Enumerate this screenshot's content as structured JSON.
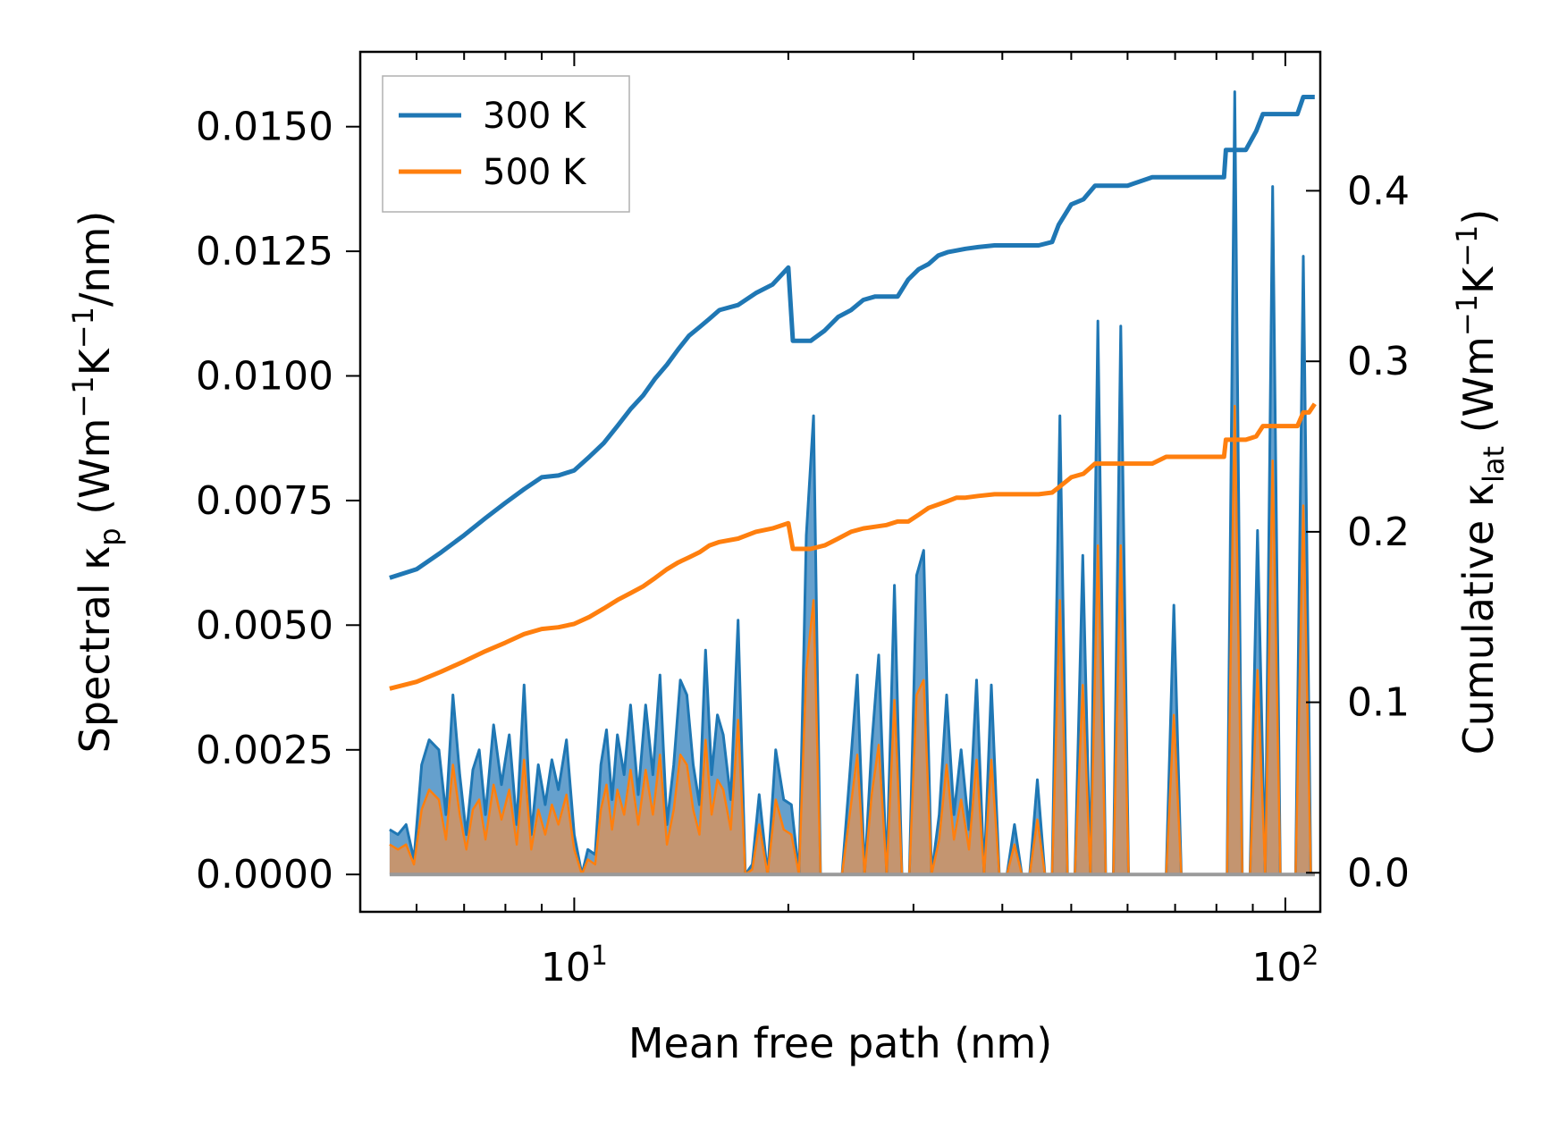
{
  "chart_data": {
    "type": "line",
    "xscale": "log",
    "xlim": [
      5,
      112
    ],
    "xticks": [
      10,
      100
    ],
    "xtick_labels": [
      {
        "base": "10",
        "exp": "1"
      },
      {
        "base": "10",
        "exp": "2"
      }
    ],
    "xlabel": "Mean free path (nm)",
    "ylabel_left": {
      "prefix": "Spectral κ",
      "sub": "p",
      "mid": " (Wm",
      "sup1": "−1",
      "k": "K",
      "sup2": "−1",
      "suffix": "/nm)"
    },
    "ylabel_right": {
      "prefix": "Cumulative κ",
      "sub": "lat",
      "mid": " (Wm",
      "sup1": "−1",
      "k": "K",
      "sup2": "−1",
      "suffix": ")"
    },
    "ylim_left": [
      -0.00075,
      0.0165
    ],
    "ylim_right": [
      -0.0229,
      0.4815
    ],
    "yticks_left": [
      0.0,
      0.0025,
      0.005,
      0.0075,
      0.01,
      0.0125,
      0.015
    ],
    "ytick_labels_left": [
      "0.0000",
      "0.0025",
      "0.0050",
      "0.0075",
      "0.0100",
      "0.0125",
      "0.0150"
    ],
    "yticks_right": [
      0.0,
      0.1,
      0.2,
      0.3,
      0.4
    ],
    "ytick_labels_right": [
      "0.0",
      "0.1",
      "0.2",
      "0.3",
      "0.4"
    ],
    "legend": {
      "position": "upper-left",
      "entries": [
        "300 K",
        "500 K"
      ]
    },
    "colors": {
      "300 K": "#1f77b4",
      "500 K": "#ff7f0e",
      "fill_300": "#4a8fc4",
      "fill_500": "#c9956a"
    },
    "spectral": {
      "x": [
        5.5,
        5.65,
        5.8,
        5.95,
        6.1,
        6.25,
        6.45,
        6.6,
        6.75,
        6.9,
        7.05,
        7.2,
        7.35,
        7.5,
        7.7,
        7.9,
        8.1,
        8.3,
        8.5,
        8.7,
        8.9,
        9.1,
        9.3,
        9.5,
        9.75,
        10.0,
        10.25,
        10.45,
        10.7,
        10.9,
        11.1,
        11.3,
        11.5,
        11.75,
        12.0,
        12.3,
        12.6,
        12.9,
        13.2,
        13.5,
        13.8,
        14.1,
        14.4,
        14.7,
        15.0,
        15.3,
        15.6,
        15.9,
        16.2,
        16.6,
        17.0,
        17.4,
        17.8,
        18.2,
        18.7,
        19.2,
        19.7,
        20.2,
        20.7,
        21.2,
        21.7,
        22.2,
        22.7,
        23.2,
        23.8,
        24.4,
        25.0,
        25.6,
        26.2,
        26.8,
        27.5,
        28.2,
        28.9,
        29.6,
        30.3,
        31.0,
        31.8,
        32.6,
        33.4,
        34.2,
        35.0,
        35.9,
        36.8,
        37.7,
        38.6,
        39.6,
        40.6,
        41.6,
        42.6,
        43.7,
        44.8,
        45.9,
        47.0,
        48.2,
        49.4,
        50.6,
        51.9,
        53.2,
        54.5,
        55.9,
        57.3,
        58.7,
        60.2,
        61.7,
        63.2,
        64.8,
        66.4,
        68.0,
        69.7,
        71.4,
        73.2,
        75.0,
        76.9,
        78.8,
        80.8,
        82.8,
        84.9,
        87.0,
        89.2,
        91.4,
        93.7,
        96.0,
        98.4,
        100.9,
        103.4,
        106.0,
        108.6,
        110.0
      ],
      "k300": [
        0.0009,
        0.0008,
        0.001,
        0.0003,
        0.0022,
        0.0027,
        0.0025,
        0.0012,
        0.0036,
        0.002,
        0.0008,
        0.0021,
        0.0025,
        0.0012,
        0.003,
        0.0018,
        0.0028,
        0.001,
        0.0038,
        0.0008,
        0.0022,
        0.0014,
        0.0023,
        0.0017,
        0.0027,
        0.0008,
        0.0,
        0.0005,
        0.0004,
        0.0022,
        0.0029,
        0.0015,
        0.0028,
        0.002,
        0.0034,
        0.0016,
        0.0034,
        0.002,
        0.004,
        0.001,
        0.0022,
        0.0039,
        0.0036,
        0.0022,
        0.0014,
        0.0045,
        0.002,
        0.0032,
        0.0028,
        0.0015,
        0.0051,
        0.0,
        0.0002,
        0.0016,
        0.0,
        0.0025,
        0.0015,
        0.0014,
        0.0,
        0.0068,
        0.0092,
        0.0,
        0.0,
        0.0,
        0.0,
        0.002,
        0.004,
        0.0,
        0.0026,
        0.0044,
        0.0,
        0.0058,
        0.0,
        0.0,
        0.006,
        0.0065,
        0.0,
        0.0012,
        0.0036,
        0.0012,
        0.0025,
        0.0009,
        0.0039,
        0.0,
        0.0038,
        0.0,
        0.0,
        0.001,
        0.0,
        0.0,
        0.0019,
        0.0,
        0.0,
        0.0092,
        0.0,
        0.0,
        0.0064,
        0.0,
        0.0111,
        0.0,
        0.0,
        0.011,
        0.0,
        0.0,
        0.0,
        0.0,
        0.0,
        0.0,
        0.0054,
        0.0,
        0.0,
        0.0,
        0.0,
        0.0,
        0.0,
        0.0,
        0.0157,
        0.0,
        0.0,
        0.0069,
        0.0,
        0.0138,
        0.0,
        0.0,
        0.0,
        0.0124,
        0.0,
        0.0
      ],
      "k500": [
        0.0006,
        0.0005,
        0.0006,
        0.0002,
        0.0013,
        0.0017,
        0.0015,
        0.0007,
        0.0022,
        0.0012,
        0.0005,
        0.0013,
        0.0015,
        0.0007,
        0.0018,
        0.0011,
        0.0017,
        0.0006,
        0.0023,
        0.0005,
        0.0013,
        0.0008,
        0.0014,
        0.001,
        0.0016,
        0.0005,
        0.0,
        0.0003,
        0.0002,
        0.0013,
        0.0018,
        0.0009,
        0.0017,
        0.0012,
        0.0021,
        0.001,
        0.0021,
        0.0012,
        0.0024,
        0.0006,
        0.0013,
        0.0024,
        0.0022,
        0.0013,
        0.0008,
        0.0027,
        0.0012,
        0.0019,
        0.0017,
        0.0009,
        0.0031,
        0.0,
        0.0001,
        0.001,
        0.0,
        0.0015,
        0.0009,
        0.0008,
        0.0,
        0.0041,
        0.0055,
        0.0,
        0.0,
        0.0,
        0.0,
        0.0012,
        0.0024,
        0.0,
        0.0016,
        0.0026,
        0.0,
        0.0035,
        0.0,
        0.0,
        0.0036,
        0.0039,
        0.0,
        0.0007,
        0.0022,
        0.0007,
        0.0015,
        0.0005,
        0.0023,
        0.0,
        0.0023,
        0.0,
        0.0,
        0.0006,
        0.0,
        0.0,
        0.0011,
        0.0,
        0.0,
        0.0055,
        0.0,
        0.0,
        0.0038,
        0.0,
        0.0066,
        0.0,
        0.0,
        0.0066,
        0.0,
        0.0,
        0.0,
        0.0,
        0.0,
        0.0,
        0.0032,
        0.0,
        0.0,
        0.0,
        0.0,
        0.0,
        0.0,
        0.0,
        0.0094,
        0.0,
        0.0,
        0.0041,
        0.0,
        0.0083,
        0.0,
        0.0,
        0.0,
        0.0074,
        0.0,
        0.0
      ]
    },
    "cumulative": {
      "x300": [
        5.5,
        6.0,
        6.5,
        7.0,
        7.5,
        8.0,
        8.5,
        9.0,
        9.5,
        10.0,
        10.5,
        11.0,
        11.5,
        12.0,
        12.5,
        13.0,
        13.5,
        14.0,
        14.5,
        15.0,
        15.5,
        16.0,
        17.0,
        18.0,
        19.0,
        20.0,
        20.3,
        20.8,
        21.5,
        22.5,
        23.5,
        24.5,
        25.5,
        26.5,
        27.5,
        28.5,
        29.5,
        30.5,
        31.5,
        32.5,
        33.5,
        34.5,
        35.5,
        37.0,
        39.0,
        41.0,
        43.0,
        45.0,
        47.0,
        48.0,
        50.0,
        52.0,
        54.0,
        55.0,
        56.0,
        60.0,
        65.0,
        68.0,
        72.0,
        76.0,
        80.0,
        82.0,
        82.5,
        84.0,
        88.0,
        91.0,
        93.0,
        96.0,
        100.0,
        104.0,
        106.0,
        108.0,
        110.0
      ],
      "c300": [
        0.173,
        0.178,
        0.188,
        0.198,
        0.208,
        0.217,
        0.225,
        0.232,
        0.233,
        0.236,
        0.244,
        0.252,
        0.262,
        0.272,
        0.28,
        0.29,
        0.298,
        0.307,
        0.315,
        0.32,
        0.325,
        0.33,
        0.333,
        0.34,
        0.345,
        0.355,
        0.312,
        0.312,
        0.312,
        0.318,
        0.326,
        0.33,
        0.336,
        0.338,
        0.338,
        0.338,
        0.348,
        0.354,
        0.357,
        0.362,
        0.364,
        0.365,
        0.366,
        0.367,
        0.368,
        0.368,
        0.368,
        0.368,
        0.37,
        0.38,
        0.392,
        0.395,
        0.403,
        0.403,
        0.403,
        0.403,
        0.408,
        0.408,
        0.408,
        0.408,
        0.408,
        0.408,
        0.424,
        0.424,
        0.424,
        0.435,
        0.445,
        0.445,
        0.445,
        0.445,
        0.455,
        0.455,
        0.455
      ],
      "x500": [
        5.5,
        6.0,
        6.5,
        7.0,
        7.5,
        8.0,
        8.5,
        9.0,
        9.5,
        10.0,
        10.5,
        11.0,
        11.5,
        12.0,
        12.5,
        13.0,
        13.5,
        14.0,
        14.5,
        15.0,
        15.5,
        16.0,
        17.0,
        18.0,
        19.0,
        20.0,
        20.3,
        21.5,
        22.5,
        23.5,
        24.5,
        25.5,
        26.5,
        27.5,
        28.5,
        29.5,
        30.5,
        31.5,
        32.5,
        33.5,
        34.5,
        35.5,
        37.0,
        39.0,
        41.0,
        43.0,
        45.0,
        47.0,
        48.0,
        50.0,
        52.0,
        54.0,
        55.0,
        56.0,
        60.0,
        65.0,
        68.0,
        72.0,
        76.0,
        80.0,
        82.0,
        82.5,
        84.0,
        88.0,
        91.0,
        93.0,
        96.0,
        100.0,
        104.0,
        106.0,
        108.0,
        110.0
      ],
      "c500": [
        0.108,
        0.112,
        0.118,
        0.124,
        0.13,
        0.135,
        0.14,
        0.143,
        0.144,
        0.146,
        0.15,
        0.155,
        0.16,
        0.164,
        0.168,
        0.173,
        0.178,
        0.182,
        0.185,
        0.188,
        0.192,
        0.194,
        0.196,
        0.2,
        0.202,
        0.205,
        0.19,
        0.19,
        0.192,
        0.196,
        0.2,
        0.202,
        0.203,
        0.204,
        0.206,
        0.206,
        0.21,
        0.214,
        0.216,
        0.218,
        0.22,
        0.22,
        0.221,
        0.222,
        0.222,
        0.222,
        0.222,
        0.223,
        0.226,
        0.232,
        0.234,
        0.24,
        0.24,
        0.24,
        0.24,
        0.24,
        0.244,
        0.244,
        0.244,
        0.244,
        0.244,
        0.254,
        0.254,
        0.254,
        0.256,
        0.262,
        0.262,
        0.262,
        0.262,
        0.27,
        0.27,
        0.275
      ]
    }
  }
}
